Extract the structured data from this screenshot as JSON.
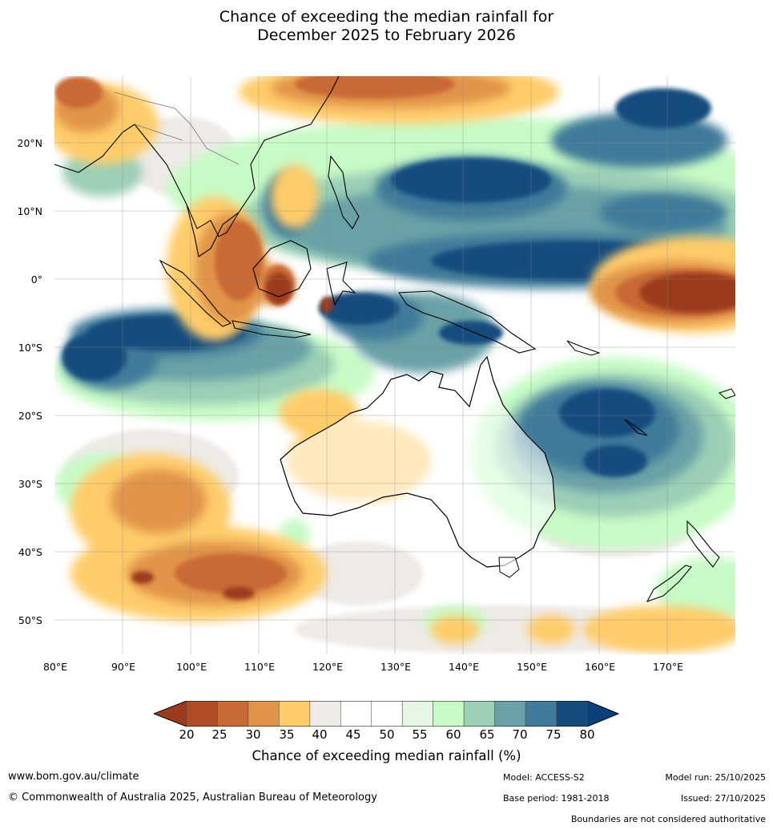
{
  "title": {
    "line1": "Chance of exceeding the median rainfall for",
    "line2": "December 2025 to February 2026"
  },
  "map": {
    "lat_labels": [
      "20°N",
      "10°N",
      "0°",
      "10°S",
      "20°S",
      "30°S",
      "40°S",
      "50°S"
    ],
    "lon_labels": [
      "80°E",
      "90°E",
      "100°E",
      "110°E",
      "120°E",
      "130°E",
      "140°E",
      "150°E",
      "160°E",
      "170°E"
    ],
    "lat_range": [
      -55,
      30
    ],
    "lon_range": [
      80,
      180
    ]
  },
  "colorbar": {
    "tick_labels": [
      "20",
      "25",
      "30",
      "35",
      "40",
      "45",
      "50",
      "55",
      "60",
      "65",
      "70",
      "75",
      "80"
    ],
    "colors": [
      "#9b3a1f",
      "#b14d26",
      "#c96935",
      "#e19449",
      "#ffcc6b",
      "#eeeae6",
      "#ffffff",
      "#ffffff",
      "#e8f6e6",
      "#c7fbc6",
      "#9bcfb6",
      "#6aa1a7",
      "#417a9a",
      "#144b7e",
      "#0d3f78"
    ],
    "title": "Chance of exceeding median rainfall (%)"
  },
  "footer": {
    "website": "www.bom.gov.au/climate",
    "copyright": "© Commonwealth of Australia 2025, Australian Bureau of Meteorology",
    "model": "Model: ACCESS-S2",
    "base_period": "Base period: 1981-2018",
    "model_run": "Model run: 25/10/2025",
    "issued": "Issued: 27/10/2025",
    "disclaimer": "Boundaries are not considered authoritative"
  }
}
